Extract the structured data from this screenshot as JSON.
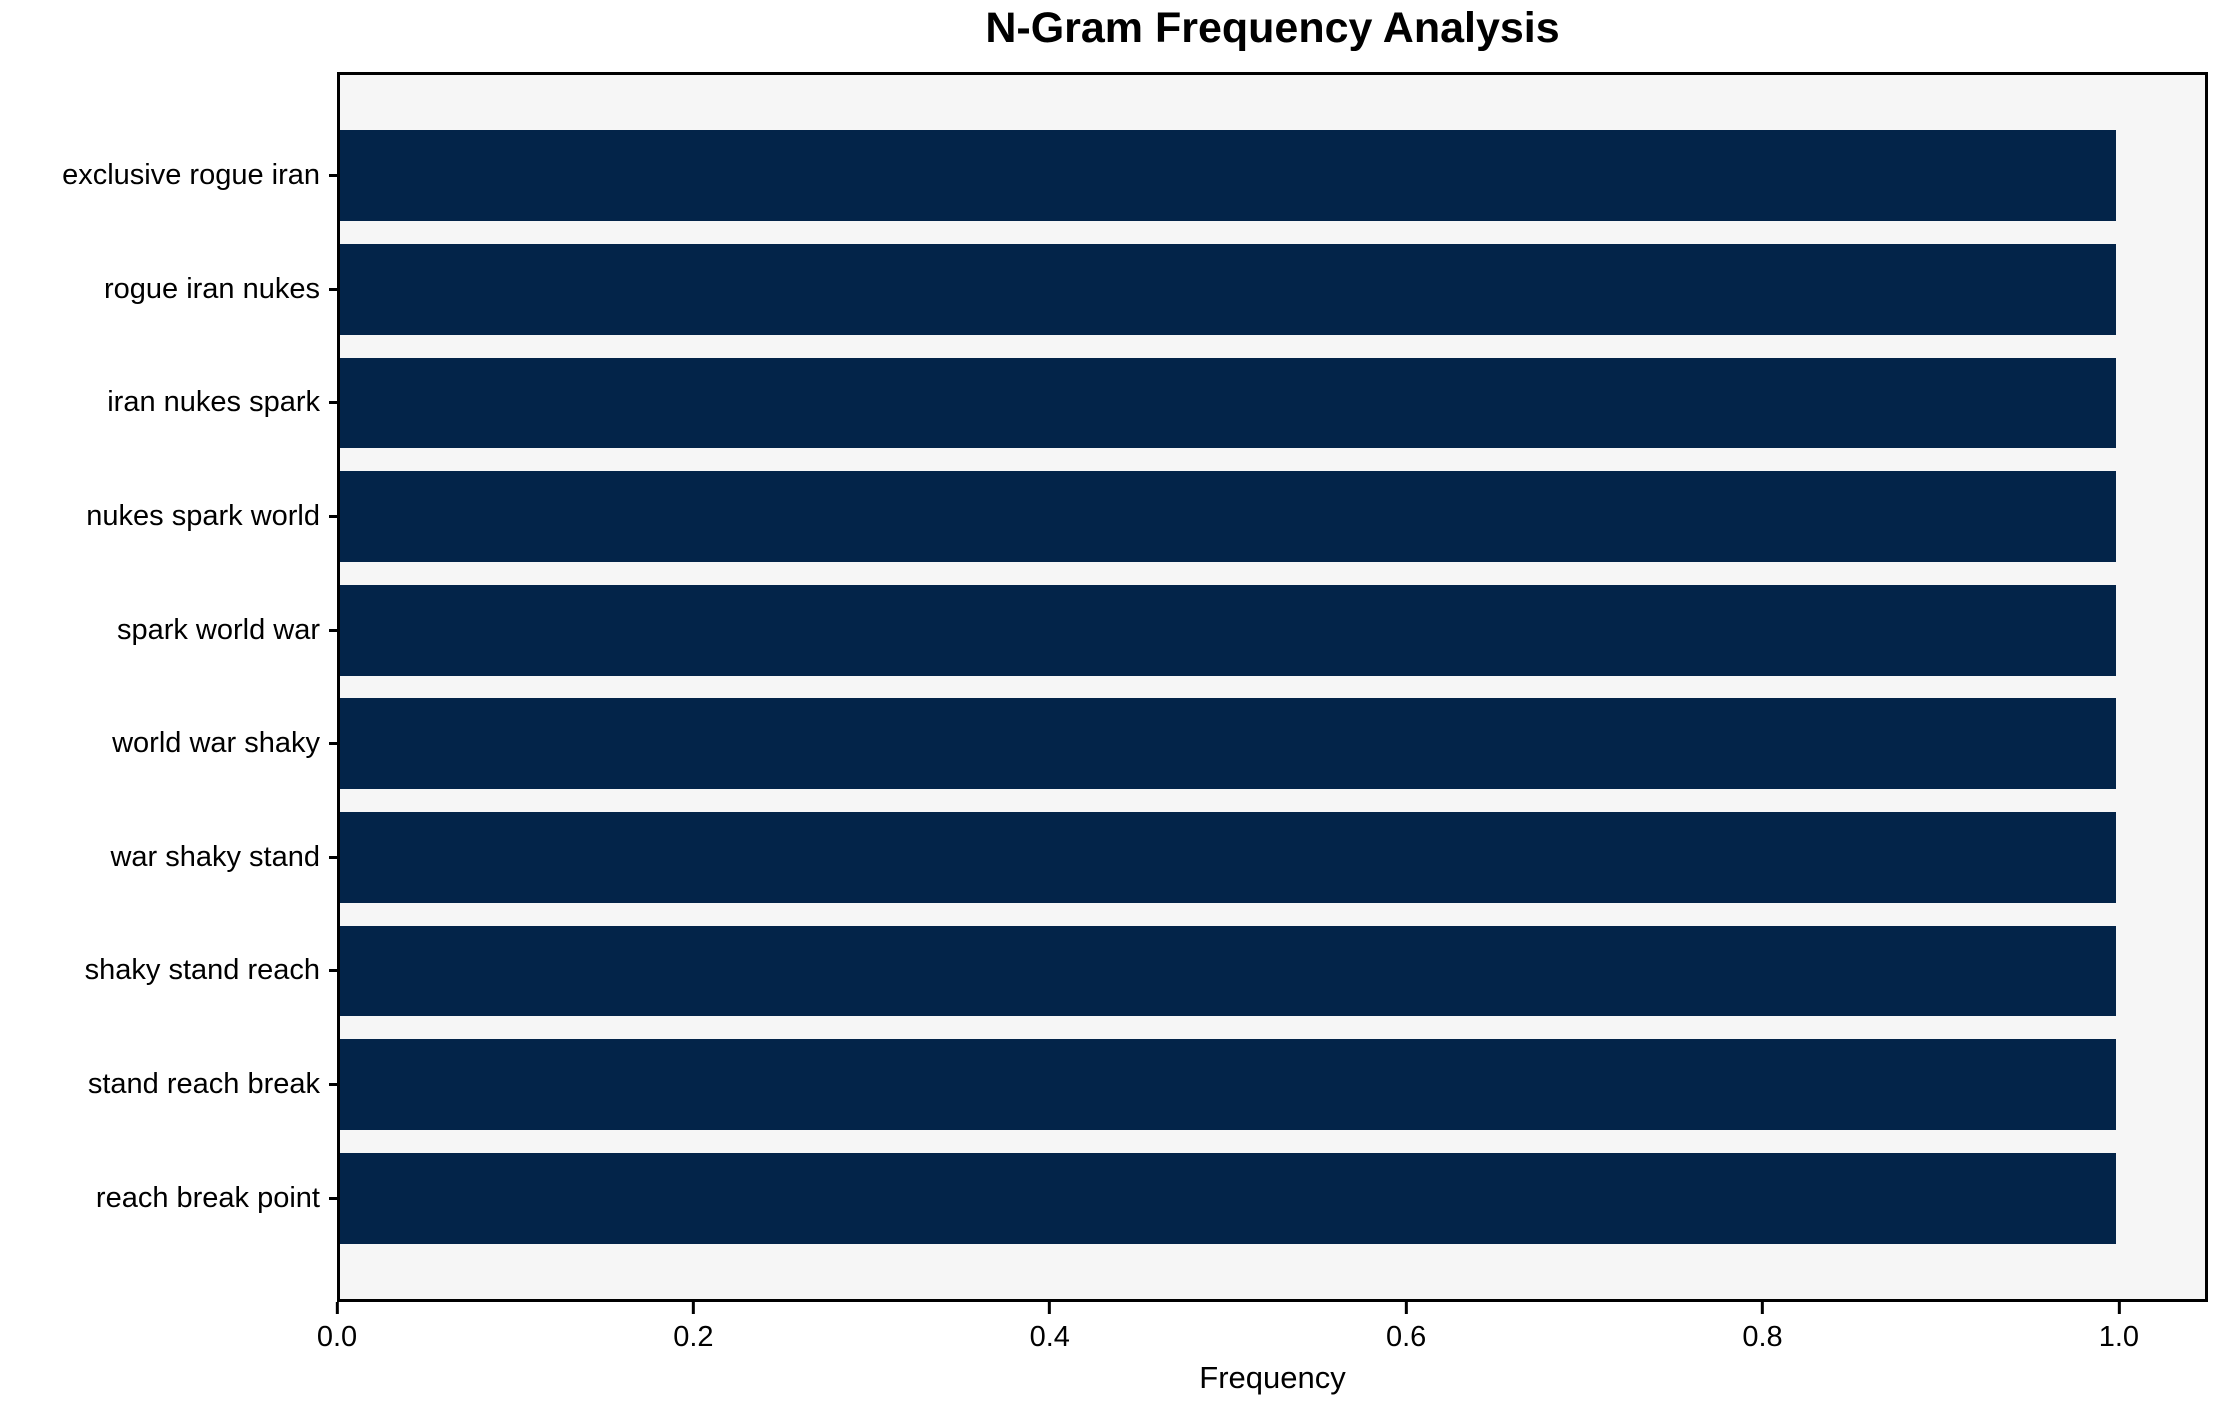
{
  "title": "N-Gram Frequency Analysis",
  "chart_data": {
    "type": "bar",
    "orientation": "horizontal",
    "title": "N-Gram Frequency Analysis",
    "xlabel": "Frequency",
    "ylabel": "",
    "categories": [
      "exclusive rogue iran",
      "rogue iran nukes",
      "iran nukes spark",
      "nukes spark world",
      "spark world war",
      "world war shaky",
      "war shaky stand",
      "shaky stand reach",
      "stand reach break",
      "reach break point"
    ],
    "values": [
      1.0,
      1.0,
      1.0,
      1.0,
      1.0,
      1.0,
      1.0,
      1.0,
      1.0,
      1.0
    ],
    "xlim": [
      0,
      1.05
    ],
    "xticks": [
      0.0,
      0.2,
      0.4,
      0.6,
      0.8,
      1.0
    ],
    "xtick_labels": [
      "0.0",
      "0.2",
      "0.4",
      "0.6",
      "0.8",
      "1.0"
    ],
    "grid": false,
    "legend": null,
    "bar_height_fraction": 0.8,
    "colors": {
      "bar": "#032449",
      "plot_background": "#f6f6f6",
      "figure_background": "#ffffff",
      "spine": "#000000",
      "text": "#000000"
    }
  }
}
